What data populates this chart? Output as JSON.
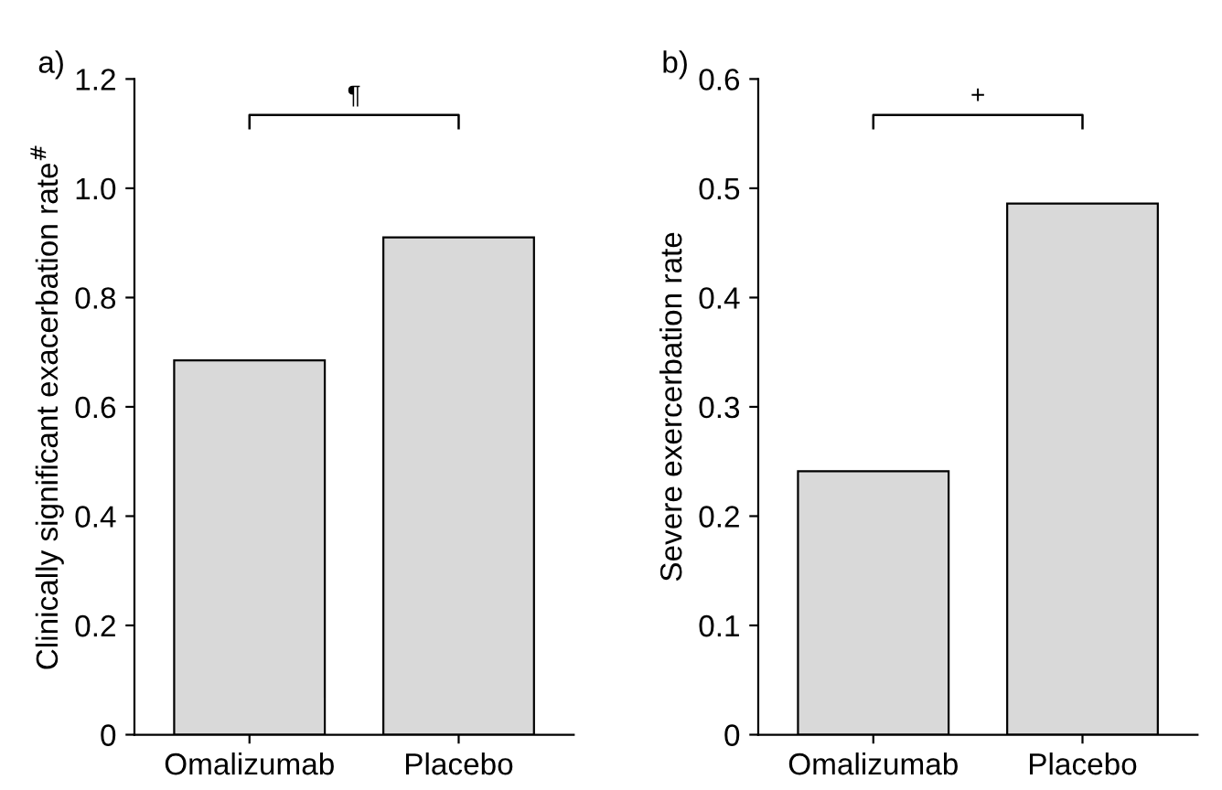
{
  "chart_data": [
    {
      "type": "bar",
      "categories": [
        "Omalizumab",
        "Placebo"
      ],
      "values": [
        0.685,
        0.91
      ],
      "color": "#d9d9d9",
      "ylabel": "Clinically significant exacerbation rate$^{#}$",
      "ylim": [
        0,
        1.2
      ],
      "yticks": [
        0,
        0.2,
        0.4,
        0.6,
        0.8,
        {
          "value": 1,
          "label": "1.0"
        },
        1.2
      ],
      "annotations": [
        "a)",
        "¶"
      ],
      "grid": false
    },
    {
      "type": "bar",
      "categories": [
        "Omalizumab",
        "Placebo"
      ],
      "values": [
        0.241,
        0.486
      ],
      "color": "#d9d9d9",
      "ylabel": "Severe exercerbation rate",
      "ylim": [
        0,
        0.6
      ],
      "yticks": [
        0,
        0.1,
        0.2,
        0.3,
        0.4,
        0.5,
        0.6
      ],
      "annotations": [
        "b)",
        "+"
      ],
      "grid": false
    }
  ]
}
